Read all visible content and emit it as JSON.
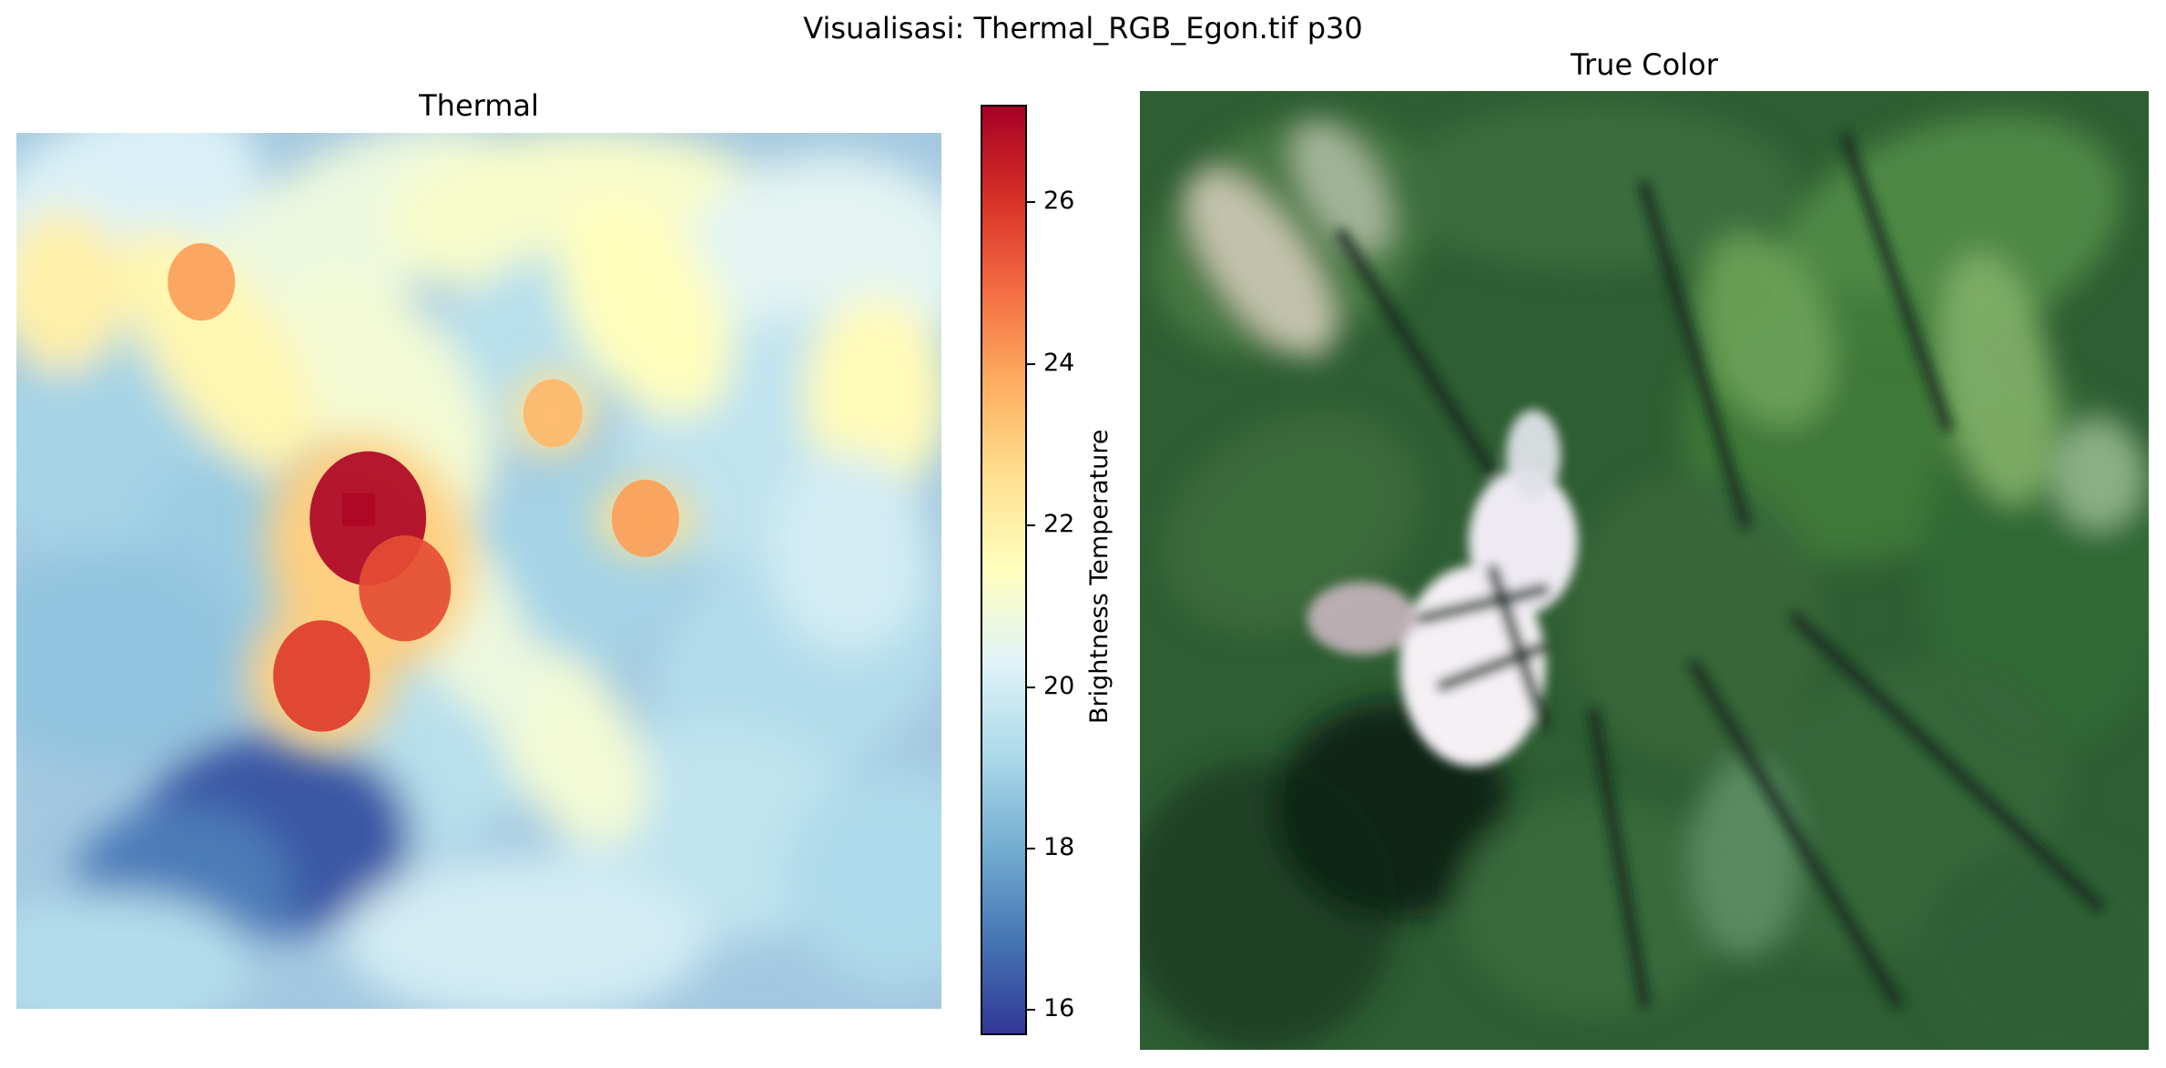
{
  "figure": {
    "title": "Visualisasi: Thermal_RGB_Egon.tif p30"
  },
  "chart_data": [
    {
      "type": "heatmap",
      "title": "Thermal",
      "colormap": "RdYlBu_r",
      "colorbar": {
        "label": "Brightness Temperature",
        "range": [
          15.7,
          27.2
        ],
        "ticks": [
          16,
          18,
          20,
          22,
          24,
          26
        ],
        "tick_labels": [
          "16",
          "18",
          "20",
          "22",
          "24",
          "26"
        ]
      },
      "axes": "off",
      "hotspots": [
        {
          "x": 0.38,
          "y": 0.44,
          "value": 27.0
        },
        {
          "x": 0.42,
          "y": 0.52,
          "value": 25.5
        },
        {
          "x": 0.33,
          "y": 0.62,
          "value": 25.8
        },
        {
          "x": 0.68,
          "y": 0.44,
          "value": 24.0
        },
        {
          "x": 0.58,
          "y": 0.32,
          "value": 23.5
        },
        {
          "x": 0.2,
          "y": 0.17,
          "value": 24.0
        }
      ],
      "cold_spots": [
        {
          "x": 0.28,
          "y": 0.8,
          "value": 16.2
        },
        {
          "x": 0.18,
          "y": 0.85,
          "value": 17.0
        }
      ]
    },
    {
      "type": "heatmap",
      "title": "True Color",
      "axes": "off",
      "description_colors": {
        "vegetation": "#3f7a3a",
        "dark_forest": "#18301c",
        "crater_white": "#f4f0f4"
      }
    }
  ]
}
